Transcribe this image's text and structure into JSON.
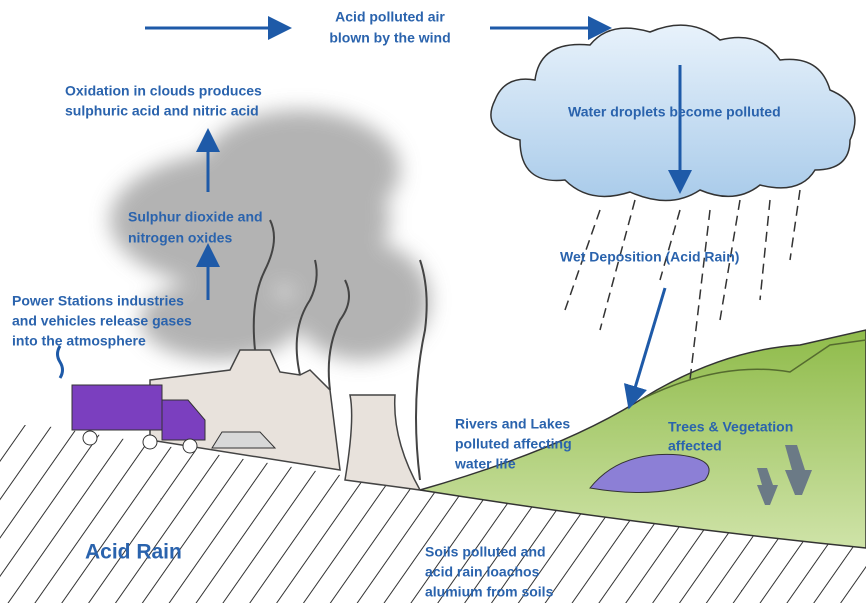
{
  "title": "Acid Rain",
  "labels": {
    "wind": [
      "Acid polluted air",
      "blown by the wind"
    ],
    "oxidation": [
      "Oxidation in clouds produces",
      "sulphuric acid and nitric acid"
    ],
    "droplets": [
      "Water droplets become polluted"
    ],
    "gases": [
      "Sulphur dioxide and",
      "nitrogen oxides"
    ],
    "deposition": [
      "Wet Deposition (Acid Rain)"
    ],
    "sources": [
      "Power Stations industries",
      "and vehicles release gases",
      "into the atmosphere"
    ],
    "rivers": [
      "Rivers and Lakes",
      "polluted affecting",
      "water life"
    ],
    "trees": [
      "Trees & Vegetation",
      "affected"
    ],
    "soils": [
      "Soils polluted and",
      "acid rain loachos",
      "alumium from soils"
    ]
  }
}
